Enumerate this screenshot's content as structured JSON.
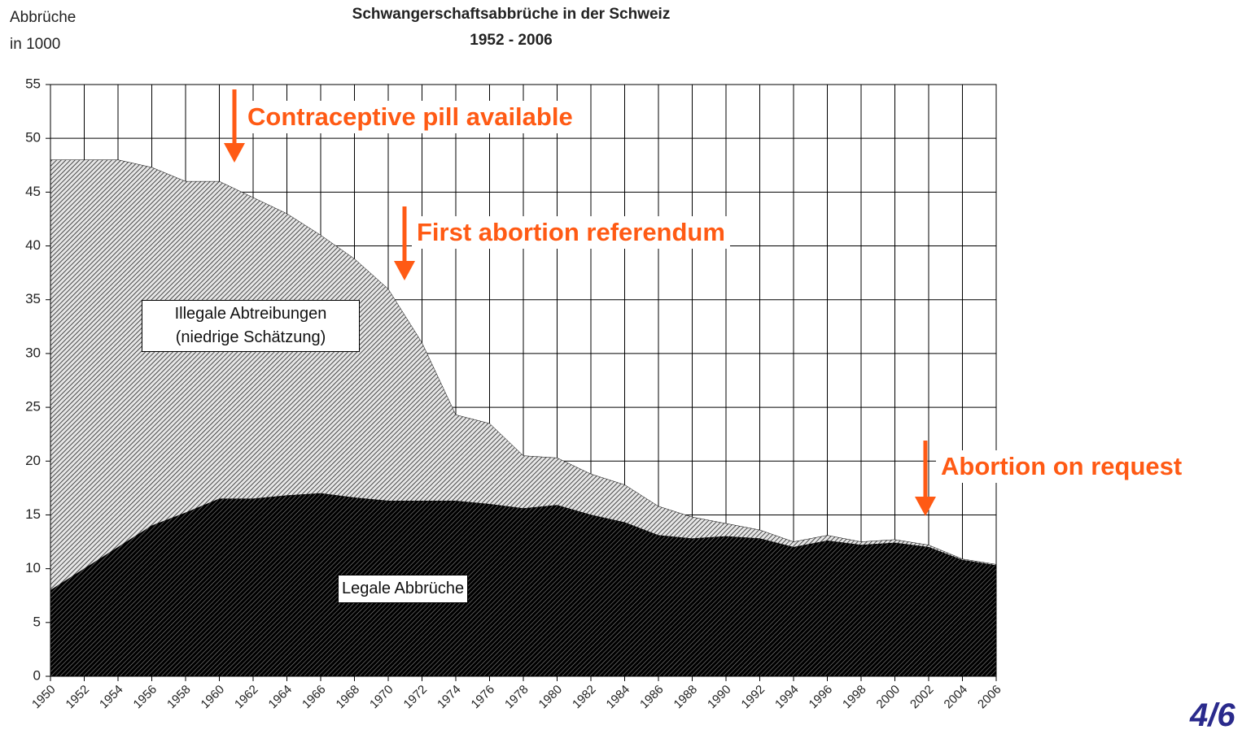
{
  "chart_data": {
    "type": "area",
    "stacked": true,
    "title": "Schwangerschaftsabbrüche in der Schweiz",
    "subtitle": "1952 - 2006",
    "ylabel": [
      "Abbrüche",
      "in 1000"
    ],
    "x": [
      1950,
      1952,
      1954,
      1956,
      1958,
      1960,
      1962,
      1964,
      1966,
      1968,
      1970,
      1972,
      1974,
      1976,
      1978,
      1980,
      1982,
      1984,
      1986,
      1988,
      1990,
      1992,
      1994,
      1996,
      1998,
      2000,
      2002,
      2004,
      2006
    ],
    "series": [
      {
        "name": "Legale Abbrüche",
        "color": "#1a1a1a",
        "values": [
          8,
          10,
          12,
          14,
          15.2,
          16.5,
          16.5,
          16.8,
          17,
          16.6,
          16.3,
          16.3,
          16.3,
          16,
          15.6,
          15.9,
          15,
          14.3,
          13.1,
          12.8,
          13,
          12.8,
          12,
          12.6,
          12.2,
          12.4,
          12,
          10.8,
          10.3
        ]
      },
      {
        "name": "Illegale Abtreibungen (niedrige Schätzung)",
        "color": "#555555",
        "values": [
          40,
          38,
          36,
          33.3,
          30.8,
          29.5,
          28,
          26.2,
          24,
          22.2,
          19.7,
          14.7,
          8,
          7.5,
          4.9,
          4.4,
          3.8,
          3.5,
          2.7,
          2,
          1.2,
          0.8,
          0.5,
          0.5,
          0.3,
          0.3,
          0.2,
          0.1,
          0.1
        ]
      }
    ],
    "xlim": [
      1950,
      2006
    ],
    "xticks": [
      1950,
      1952,
      1954,
      1956,
      1958,
      1960,
      1962,
      1964,
      1966,
      1968,
      1970,
      1972,
      1974,
      1976,
      1978,
      1980,
      1982,
      1984,
      1986,
      1988,
      1990,
      1992,
      1994,
      1996,
      1998,
      2000,
      2002,
      2004,
      2006
    ],
    "ylim": [
      0,
      55
    ],
    "yticks": [
      0,
      5,
      10,
      15,
      20,
      25,
      30,
      35,
      40,
      45,
      50,
      55
    ],
    "grid": true,
    "annotations": [
      "Contraceptive pill available",
      "First abortion referendum",
      "Abortion on request"
    ]
  },
  "page": "4/6"
}
